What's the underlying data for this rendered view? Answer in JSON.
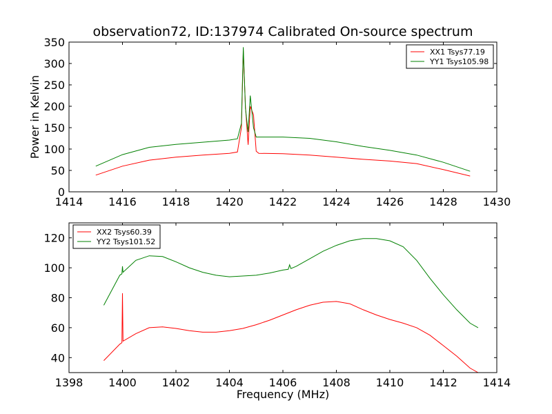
{
  "chart_data": [
    {
      "type": "line",
      "title": "observation72, ID:137974 Calibrated On-source spectrum",
      "xlabel": "",
      "ylabel": "Power in Kelvin",
      "xlim": [
        1414,
        1430
      ],
      "ylim": [
        0,
        350
      ],
      "xticks": [
        "1414",
        "1416",
        "1418",
        "1420",
        "1422",
        "1424",
        "1426",
        "1428",
        "1430"
      ],
      "yticks": [
        "0",
        "50",
        "100",
        "150",
        "200",
        "250",
        "300",
        "350"
      ],
      "legend_position": "top-right",
      "grid": false,
      "series": [
        {
          "name": "XX1 Tsys77.19",
          "color": "#ff0000",
          "x": [
            1415.0,
            1416.0,
            1417.0,
            1418.0,
            1419.0,
            1420.0,
            1420.3,
            1420.45,
            1420.52,
            1420.6,
            1420.7,
            1420.78,
            1420.9,
            1421.0,
            1421.1,
            1422.0,
            1423.0,
            1424.0,
            1425.0,
            1426.0,
            1427.0,
            1428.0,
            1429.0
          ],
          "y": [
            39,
            60,
            74,
            81,
            86,
            90,
            93,
            150,
            330,
            200,
            110,
            200,
            180,
            95,
            90,
            89,
            86,
            81,
            76,
            72,
            66,
            52,
            37
          ]
        },
        {
          "name": "YY1 Tsys105.98",
          "color": "#008000",
          "x": [
            1415.0,
            1416.0,
            1417.0,
            1418.0,
            1419.0,
            1420.0,
            1420.3,
            1420.45,
            1420.52,
            1420.6,
            1420.7,
            1420.78,
            1420.9,
            1421.0,
            1421.1,
            1422.0,
            1423.0,
            1424.0,
            1425.0,
            1426.0,
            1427.0,
            1428.0,
            1429.0
          ],
          "y": [
            60,
            87,
            104,
            111,
            116,
            121,
            124,
            160,
            338,
            195,
            140,
            225,
            150,
            128,
            128,
            128,
            125,
            117,
            106,
            97,
            86,
            69,
            48
          ]
        }
      ]
    },
    {
      "type": "line",
      "title": "",
      "xlabel": "Frequency (MHz)",
      "ylabel": "",
      "xlim": [
        1398,
        1414
      ],
      "ylim": [
        30,
        130
      ],
      "xticks": [
        "1398",
        "1400",
        "1402",
        "1404",
        "1406",
        "1408",
        "1410",
        "1412",
        "1414"
      ],
      "yticks": [
        "40",
        "60",
        "80",
        "100",
        "120"
      ],
      "legend_position": "top-left",
      "grid": false,
      "series": [
        {
          "name": "XX2 Tsys60.39",
          "color": "#ff0000",
          "x": [
            1399.3,
            1399.9,
            1399.98,
            1400.0,
            1400.02,
            1400.5,
            1401.0,
            1401.5,
            1402.0,
            1402.5,
            1403.0,
            1403.5,
            1404.0,
            1404.5,
            1405.0,
            1405.5,
            1406.0,
            1406.5,
            1407.0,
            1407.5,
            1408.0,
            1408.5,
            1409.0,
            1409.5,
            1410.0,
            1410.5,
            1411.0,
            1411.5,
            1412.0,
            1412.5,
            1413.0,
            1413.3
          ],
          "y": [
            38,
            49,
            50,
            83,
            51,
            56,
            60,
            60.5,
            59.5,
            58,
            57,
            57,
            58,
            59.5,
            62,
            65,
            68.5,
            72,
            75,
            77,
            77.5,
            76,
            72,
            68.5,
            65.5,
            63,
            60,
            55,
            48,
            41,
            33,
            30
          ]
        },
        {
          "name": "YY2 Tsys101.52",
          "color": "#008000",
          "x": [
            1399.3,
            1399.9,
            1399.98,
            1400.0,
            1400.02,
            1400.5,
            1401.0,
            1401.5,
            1402.0,
            1402.5,
            1403.0,
            1403.5,
            1404.0,
            1404.5,
            1405.0,
            1405.5,
            1406.0,
            1406.2,
            1406.25,
            1406.3,
            1406.5,
            1407.0,
            1407.5,
            1408.0,
            1408.5,
            1409.0,
            1409.5,
            1410.0,
            1410.5,
            1411.0,
            1411.5,
            1412.0,
            1412.5,
            1413.0,
            1413.3
          ],
          "y": [
            75,
            95,
            96,
            101,
            97,
            105,
            108,
            107.5,
            104,
            100,
            97,
            95,
            94,
            94.5,
            95,
            96.5,
            98.5,
            99,
            102,
            99.5,
            101,
            106,
            111,
            115,
            118,
            119.5,
            119.5,
            118,
            114,
            105,
            93,
            82,
            72,
            63,
            60
          ]
        }
      ]
    }
  ]
}
